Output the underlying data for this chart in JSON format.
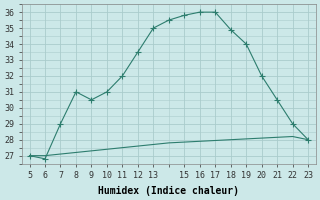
{
  "x": [
    5,
    6,
    7,
    8,
    9,
    10,
    11,
    12,
    13,
    14,
    15,
    16,
    17,
    18,
    19,
    20,
    21,
    22,
    23
  ],
  "y_humidex": [
    27,
    26.8,
    29,
    31,
    30.5,
    31,
    32,
    33.5,
    35,
    35.5,
    35.8,
    36,
    36,
    34.9,
    34,
    32,
    30.5,
    29,
    28
  ],
  "y_flat": [
    27,
    27,
    27.1,
    27.2,
    27.3,
    27.4,
    27.5,
    27.6,
    27.7,
    27.8,
    27.85,
    27.9,
    27.95,
    28.0,
    28.05,
    28.1,
    28.15,
    28.2,
    28.0
  ],
  "line_color": "#2d7d6e",
  "bg_color": "#cce8e8",
  "grid_color": "#aacccc",
  "xlabel": "Humidex (Indice chaleur)",
  "xlim": [
    4.5,
    23.5
  ],
  "ylim": [
    26.5,
    36.5
  ],
  "xticks": [
    5,
    6,
    7,
    8,
    9,
    10,
    11,
    12,
    13,
    15,
    16,
    17,
    18,
    19,
    20,
    21,
    22,
    23
  ],
  "yticks": [
    27,
    28,
    29,
    30,
    31,
    32,
    33,
    34,
    35,
    36
  ],
  "tick_fontsize": 6,
  "xlabel_fontsize": 7
}
